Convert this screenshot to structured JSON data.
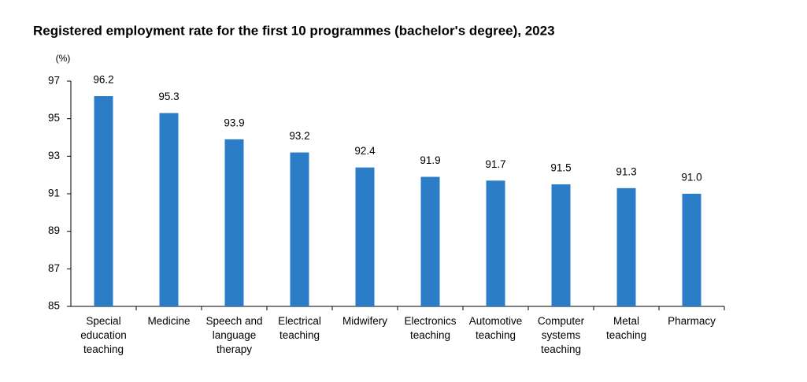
{
  "chart_data": {
    "type": "bar",
    "title": "Registered employment rate for the first 10 programmes (bachelor's degree), 2023",
    "y_label": "(%)",
    "categories": [
      "Special education teaching",
      "Medicine",
      "Speech and language therapy",
      "Electrical teaching",
      "Midwifery",
      "Electronics teaching",
      "Automotive teaching",
      "Computer systems teaching",
      "Metal teaching",
      "Pharmacy"
    ],
    "values": [
      96.2,
      95.3,
      93.9,
      93.2,
      92.4,
      91.9,
      91.7,
      91.5,
      91.3,
      91.0
    ],
    "value_labels": [
      "96.2",
      "95.3",
      "93.9",
      "93.2",
      "92.4",
      "91.9",
      "91.7",
      "91.5",
      "91.3",
      "91.0"
    ],
    "color": "#2a7dc6",
    "ylim": [
      85,
      97
    ],
    "yticks": [
      85,
      87,
      89,
      91,
      93,
      95,
      97
    ],
    "grid": false
  }
}
